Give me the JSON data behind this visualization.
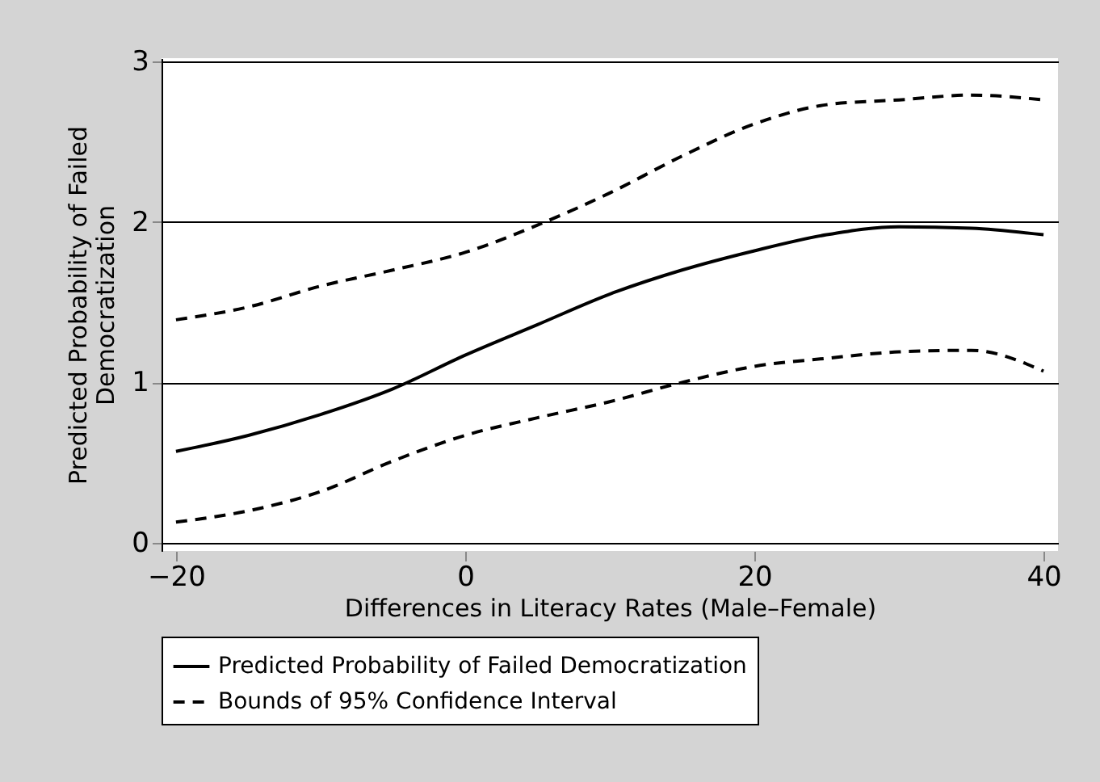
{
  "chart_data": {
    "type": "line",
    "xlabel": "Differences in Literacy Rates (Male–Female)",
    "ylabel": "Predicted Probability of Failed Democratization",
    "x": [
      -20,
      -15,
      -10,
      -5,
      0,
      5,
      10,
      15,
      20,
      25,
      30,
      35,
      40
    ],
    "series": [
      {
        "name": "Predicted Probability of Failed Democratization",
        "color": "#000000",
        "line_style": "solid",
        "values": [
          0.57,
          0.67,
          0.8,
          0.96,
          1.17,
          1.36,
          1.55,
          1.7,
          1.82,
          1.92,
          1.97,
          1.96,
          1.92
        ]
      },
      {
        "name": "Bounds of 95% Confidence Interval",
        "color": "#000000",
        "line_style": "dashed",
        "values": [
          0.13,
          0.2,
          0.32,
          0.51,
          0.67,
          0.78,
          0.88,
          1.0,
          1.1,
          1.15,
          1.19,
          1.2,
          1.07
        ]
      },
      {
        "color": "#000000",
        "line_style": "dashed",
        "values": [
          1.39,
          1.47,
          1.6,
          1.7,
          1.81,
          1.98,
          2.18,
          2.41,
          2.61,
          2.73,
          2.76,
          2.79,
          2.76
        ]
      }
    ],
    "xlim": [
      -21,
      41
    ],
    "xticks": [
      -20,
      0,
      20,
      40
    ],
    "ylim": [
      -0.05,
      3.02
    ],
    "yticks": [
      0,
      1,
      2,
      3
    ],
    "grid": "y",
    "legend": "bottom",
    "marker": "none"
  }
}
